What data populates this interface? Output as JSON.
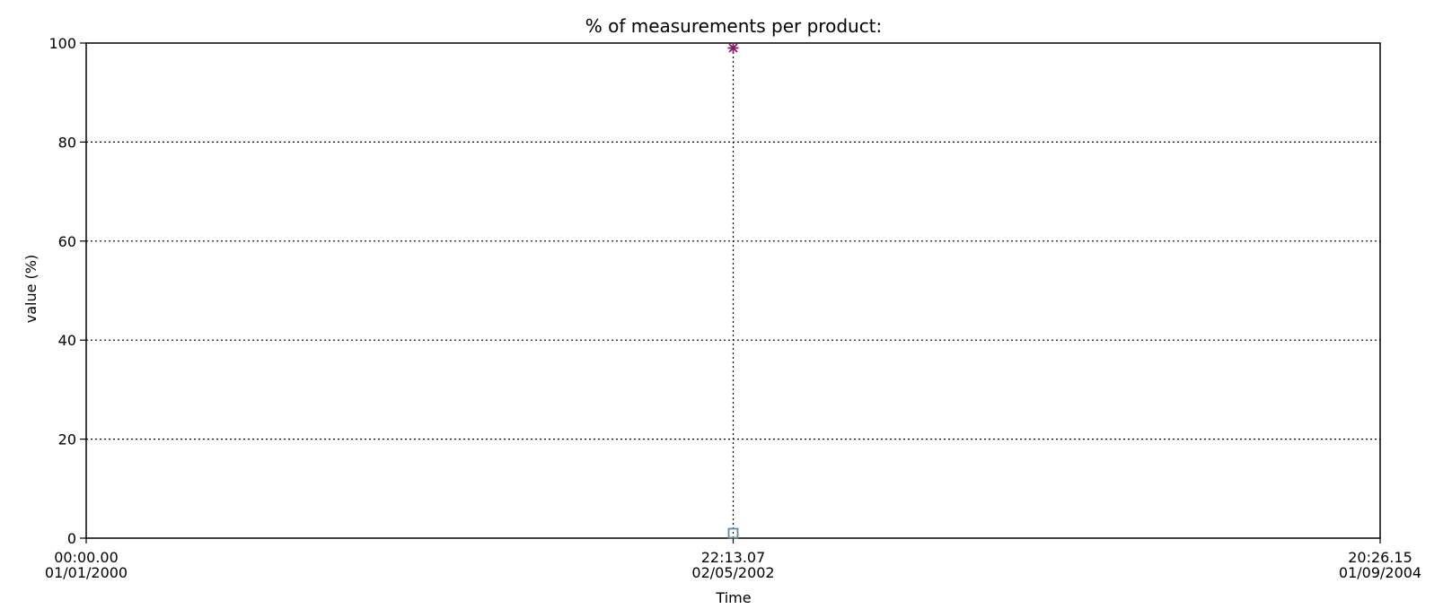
{
  "chart_data": {
    "type": "scatter",
    "title": "% of measurements per product:",
    "xlabel": "Time",
    "ylabel": "value (%)",
    "ylim": [
      0,
      100
    ],
    "yticks": [
      0,
      20,
      40,
      60,
      80,
      100
    ],
    "x_tick_labels": [
      {
        "time": "00:00.00",
        "date": "01/01/2000"
      },
      {
        "time": "22:13.07",
        "date": "02/05/2002"
      },
      {
        "time": "20:26.15",
        "date": "01/09/2004"
      }
    ],
    "grid": true,
    "legend": "none",
    "series": [
      {
        "marker": "asterisk",
        "color": "#8b1a6b",
        "points": [
          {
            "x": "02/05/2002 22:13.07",
            "y": 99
          }
        ]
      },
      {
        "marker": "square",
        "color": "#5f8aa0",
        "points": [
          {
            "x": "02/05/2002 22:13.07",
            "y": 1
          }
        ]
      }
    ]
  }
}
